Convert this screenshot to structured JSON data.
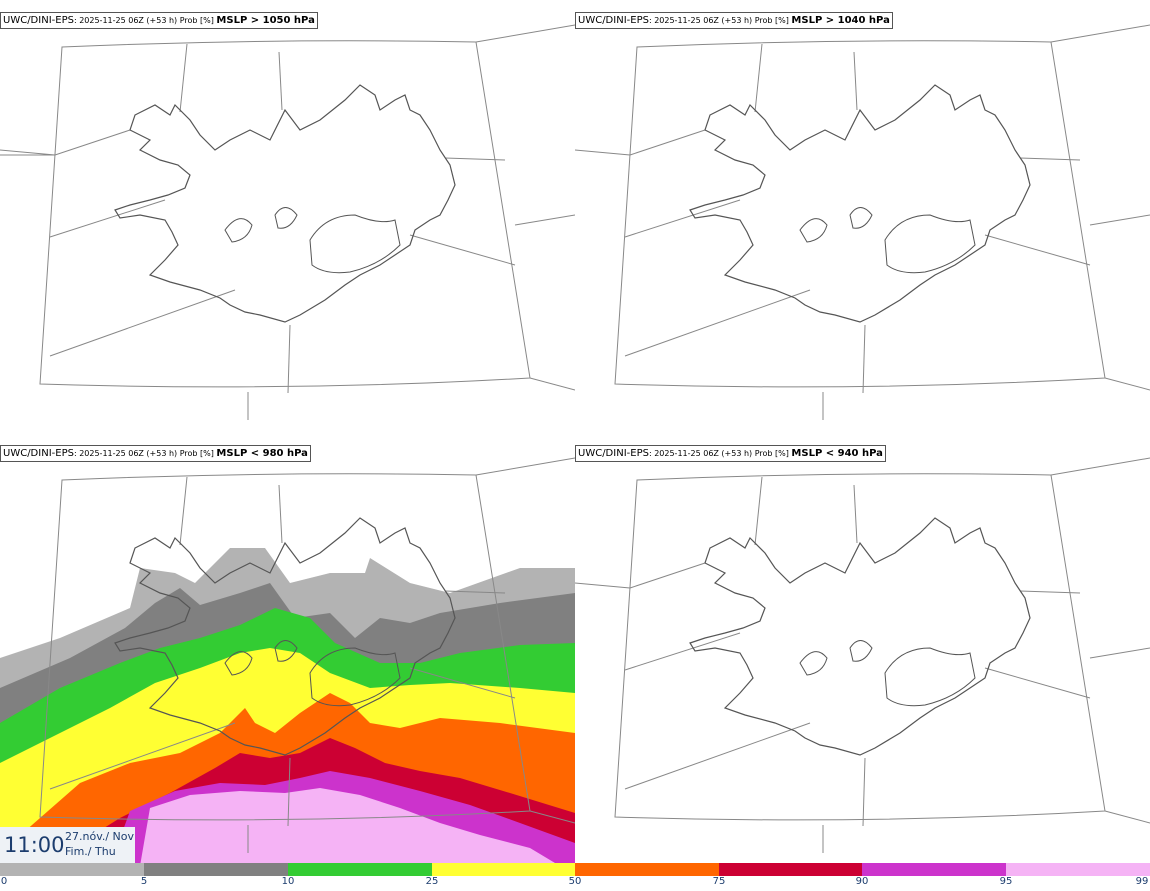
{
  "panels": [
    {
      "source": "UWC/DINI-EPS",
      "meta": ": 2025-11-25 06Z (+53 h) Prob [%] ",
      "threshold": "MSLP > 1050 hPa",
      "filled": false
    },
    {
      "source": "UWC/DINI-EPS",
      "meta": ": 2025-11-25 06Z (+53 h) Prob [%] ",
      "threshold": "MSLP > 1040 hPa",
      "filled": false
    },
    {
      "source": "UWC/DINI-EPS",
      "meta": ": 2025-11-25 06Z (+53 h) Prob [%] ",
      "threshold": "MSLP < 980 hPa",
      "filled": true
    },
    {
      "source": "UWC/DINI-EPS",
      "meta": ": 2025-11-25 06Z (+53 h) Prob [%] ",
      "threshold": "MSLP < 940 hPa",
      "filled": false
    }
  ],
  "time": {
    "clock": "11:00",
    "date": "27.nóv./ Nov",
    "weekday": "Fim./ Thu"
  },
  "colorbar": {
    "ticks": [
      "0",
      "5",
      "10",
      "25",
      "50",
      "75",
      "90",
      "95",
      "99"
    ],
    "colors": [
      "#ffffff",
      "#b3b3b3",
      "#808080",
      "#33cc33",
      "#ffff33",
      "#ff6600",
      "#cc0033",
      "#cc33cc",
      "#f5b3f5"
    ]
  },
  "colors": {
    "coast": "#555555",
    "grid": "#888888"
  }
}
